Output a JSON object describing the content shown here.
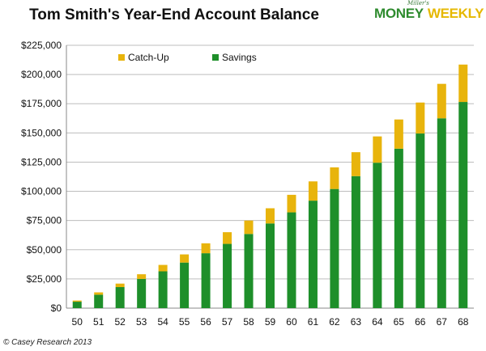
{
  "logo": {
    "tagline": "Miller's",
    "money": "MONEY",
    "weekly": "WEEKLY"
  },
  "footer": "© Casey Research 2013",
  "chart_data": {
    "type": "bar",
    "stacked": true,
    "title": "Tom Smith's Year-End Account Balance",
    "xlabel": "",
    "ylabel": "",
    "ylim": [
      0,
      225000
    ],
    "yticks": [
      0,
      25000,
      50000,
      75000,
      100000,
      125000,
      150000,
      175000,
      200000,
      225000
    ],
    "ytick_labels": [
      "$0",
      "$25,000",
      "$50,000",
      "$75,000",
      "$100,000",
      "$125,000",
      "$150,000",
      "$175,000",
      "$200,000",
      "$225,000"
    ],
    "categories": [
      "50",
      "51",
      "52",
      "53",
      "54",
      "55",
      "56",
      "57",
      "58",
      "59",
      "60",
      "61",
      "62",
      "63",
      "64",
      "65",
      "66",
      "67",
      "68"
    ],
    "legend_position": "top-left",
    "colors": {
      "Savings": "#1e8f2a",
      "Catch-Up": "#e8b40c"
    },
    "series": [
      {
        "name": "Savings",
        "values": [
          5500,
          11500,
          18000,
          25000,
          31500,
          39000,
          47000,
          55000,
          63500,
          72500,
          82000,
          92000,
          102000,
          113000,
          124500,
          136500,
          149500,
          162500,
          176500
        ]
      },
      {
        "name": "Catch-Up",
        "values": [
          1000,
          2000,
          3000,
          4000,
          5500,
          7000,
          8500,
          10000,
          11500,
          13000,
          15000,
          16500,
          18500,
          20500,
          22500,
          25000,
          26500,
          29500,
          32000
        ]
      }
    ]
  }
}
